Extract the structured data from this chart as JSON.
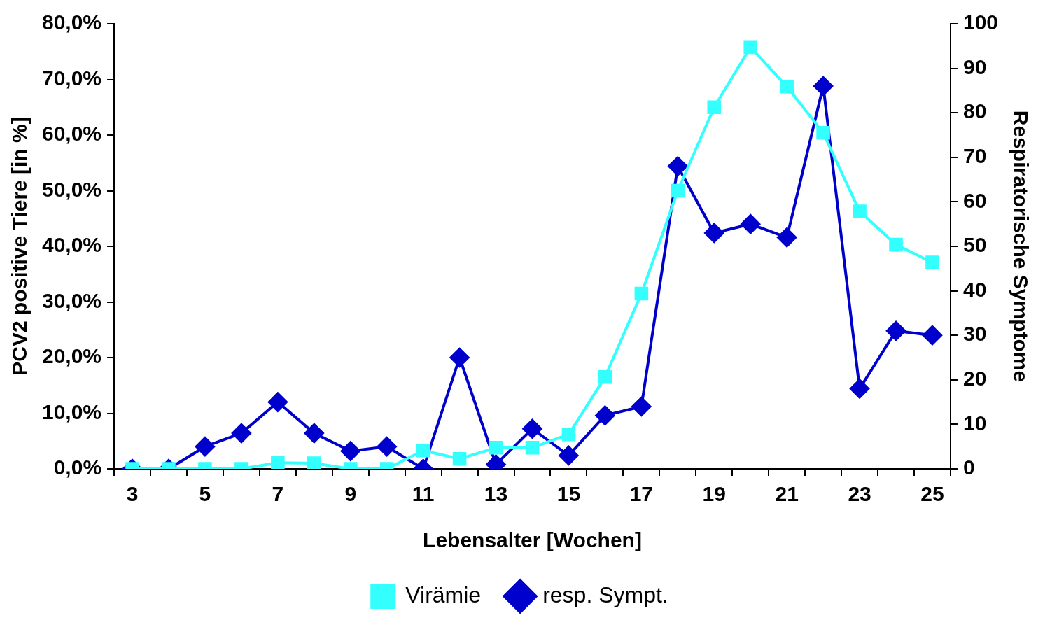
{
  "chart_data": {
    "type": "line",
    "xlabel": "Lebensalter [Wochen]",
    "ylabel": "PCV2 positive Tiere [in %]",
    "y2label": "Respiratorische Symptome",
    "categories": [
      "3",
      null,
      "5",
      null,
      "7",
      null,
      "9",
      null,
      "11",
      null,
      "13",
      null,
      "15",
      null,
      "17",
      null,
      "19",
      null,
      "21",
      null,
      "23",
      null,
      "25"
    ],
    "series": [
      {
        "name": "Virämie",
        "color": "#33ffff",
        "marker": "square",
        "values": [
          0,
          0,
          0,
          0,
          1.1,
          1.0,
          0,
          0,
          3.3,
          1.8,
          3.8,
          3.8,
          6.2,
          16.5,
          31.5,
          50.0,
          65.0,
          75.8,
          68.7,
          60.4,
          46.3,
          40.3,
          37.1
        ]
      },
      {
        "name": "resp. Sympt.",
        "color": "#0000cc",
        "marker": "diamond",
        "axis": "y2",
        "values": [
          0,
          0,
          5,
          8,
          15,
          8,
          4,
          5,
          0,
          25,
          1,
          9,
          3,
          12,
          14,
          68,
          53,
          55,
          52,
          86,
          18,
          31,
          30
        ]
      }
    ],
    "ylim": [
      0,
      80
    ],
    "yticks": [
      {
        "value": 0,
        "label": "0,0%"
      },
      {
        "value": 10,
        "label": "10,0%"
      },
      {
        "value": 20,
        "label": "20,0%"
      },
      {
        "value": 30,
        "label": "30,0%"
      },
      {
        "value": 40,
        "label": "40,0%"
      },
      {
        "value": 50,
        "label": "50,0%"
      },
      {
        "value": 60,
        "label": "60,0%"
      },
      {
        "value": 70,
        "label": "70,0%"
      },
      {
        "value": 80,
        "label": "80,0%"
      }
    ],
    "y2lim": [
      0,
      100
    ],
    "y2ticks": [
      0,
      10,
      20,
      30,
      40,
      50,
      60,
      70,
      80,
      90,
      100
    ],
    "grid": false,
    "legend": "bottom",
    "line_style": "solid"
  }
}
